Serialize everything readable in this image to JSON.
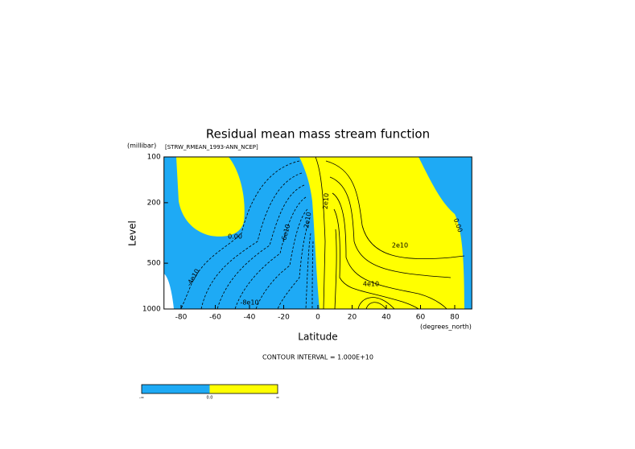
{
  "chart_data": {
    "type": "contour",
    "title": "Residual mean mass stream function",
    "subtitle": "[STRW_RMEAN_1993-ANN_NCEP]",
    "xlabel": "Latitude",
    "xunits": "(degrees_north)",
    "ylabel": "Level",
    "yunits": "(millibar)",
    "xlim": [
      -90,
      90
    ],
    "xticks": [
      -80,
      -60,
      -40,
      -20,
      0,
      20,
      40,
      60,
      80
    ],
    "ylim": [
      1000,
      100
    ],
    "yticks": [
      100,
      200,
      500,
      1000
    ],
    "yscale": "log",
    "footnote": "CONTOUR INTERVAL = 1.000E+10",
    "colors": [
      "#1eaaf5",
      "#ffff00"
    ],
    "colorbar_labels": [
      "-∞",
      "0.0",
      "∞"
    ],
    "contour_labels": [
      "0.00",
      "-6e10",
      "-2e10",
      "2e10",
      "0.00",
      "2e10",
      "4e10",
      "-4e10",
      "-8e10"
    ]
  }
}
